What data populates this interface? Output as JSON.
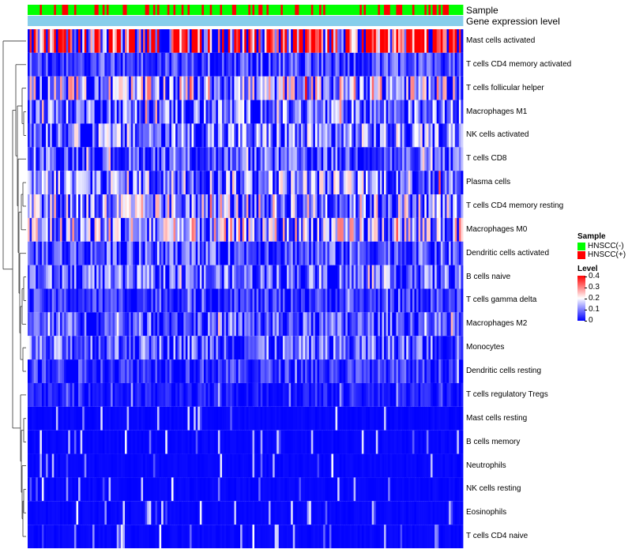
{
  "chart_data": {
    "type": "heatmap",
    "annotation_tracks": [
      "Sample",
      "Gene expression level"
    ],
    "rows": [
      {
        "name": "Mast cells activated",
        "mean": 0.27
      },
      {
        "name": "T cells CD4 memory activated",
        "mean": 0.05
      },
      {
        "name": "T cells follicular helper",
        "mean": 0.12
      },
      {
        "name": "Macrophages M1",
        "mean": 0.08
      },
      {
        "name": "NK cells activated",
        "mean": 0.09
      },
      {
        "name": "T cells CD8",
        "mean": 0.06
      },
      {
        "name": "Plasma cells",
        "mean": 0.1
      },
      {
        "name": "T cells CD4 memory resting",
        "mean": 0.11
      },
      {
        "name": "Macrophages M0",
        "mean": 0.12
      },
      {
        "name": "Dendritic cells activated",
        "mean": 0.06
      },
      {
        "name": "B cells naive",
        "mean": 0.07
      },
      {
        "name": "T cells gamma delta",
        "mean": 0.04
      },
      {
        "name": "Macrophages M2",
        "mean": 0.06
      },
      {
        "name": "Monocytes",
        "mean": 0.07
      },
      {
        "name": "Dendritic cells resting",
        "mean": 0.04
      },
      {
        "name": "T cells regulatory  Tregs",
        "mean": 0.02
      },
      {
        "name": "Mast cells resting",
        "mean": 0.005
      },
      {
        "name": "B cells memory",
        "mean": 0.005
      },
      {
        "name": "Neutrophils",
        "mean": 0.01
      },
      {
        "name": "NK cells resting",
        "mean": 0.006
      },
      {
        "name": "Eosinophils",
        "mean": 0.004
      },
      {
        "name": "T cells CD4 naive",
        "mean": 0.01
      }
    ],
    "columns_count": 215,
    "value_range": [
      0,
      0.4
    ],
    "legend": {
      "sample": {
        "title": "Sample",
        "items": [
          {
            "label": "HNSCC(-)",
            "color": "#00ff00"
          },
          {
            "label": "HNSCC(+)",
            "color": "#ff0000"
          }
        ]
      },
      "level": {
        "title": "Level",
        "ticks": [
          "0.4",
          "0.3",
          "0.2",
          "0.1",
          "0"
        ],
        "colors": {
          "low": "#0000ff",
          "mid": "#ffffff",
          "high": "#ff0000"
        }
      }
    },
    "gene_expression_track_color": "#87ceeb"
  }
}
